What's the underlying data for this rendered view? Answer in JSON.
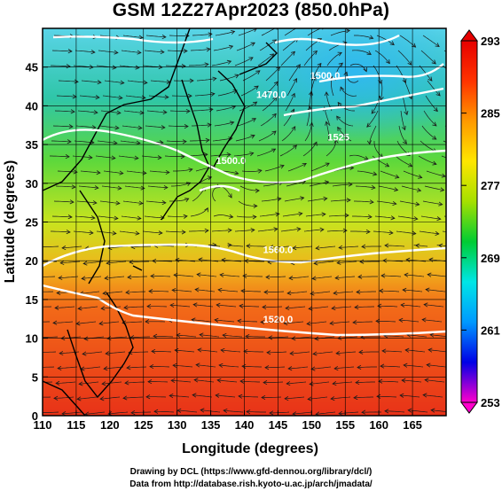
{
  "title": "GSM 12Z27Apr2023 (850.0hPa)",
  "credits": [
    "Drawing by DCL (https://www.gfd-dennou.org/library/dcl/)",
    "Data from http://database.rish.kyoto-u.ac.jp/arch/jmadata/"
  ],
  "chart_data": {
    "type": "map",
    "title": "GSM 12Z27Apr2023 (850.0hPa)",
    "xlabel": "Longitude (degrees)",
    "ylabel": "Latitude  (degrees)",
    "xlim": [
      110,
      170
    ],
    "ylim": [
      0,
      50
    ],
    "xticks": [
      110,
      115,
      120,
      125,
      130,
      135,
      140,
      145,
      150,
      155,
      160,
      165
    ],
    "yticks": [
      0,
      5,
      10,
      15,
      20,
      25,
      30,
      35,
      40,
      45
    ],
    "grid": true,
    "colorbar": {
      "min": 253,
      "max": 293,
      "ticks": [
        293,
        285,
        277,
        269,
        261,
        253
      ],
      "stops": [
        "#ff00cc",
        "#0000e6",
        "#0099ff",
        "#00e6e6",
        "#00cc33",
        "#a6e000",
        "#ffe600",
        "#ff9900",
        "#ff3300",
        "#e60000"
      ]
    },
    "contour_labels": [
      {
        "text": "1500.0",
        "lon": 152,
        "lat": 43.5
      },
      {
        "text": "1470.0",
        "lon": 144,
        "lat": 41
      },
      {
        "text": "1525",
        "lon": 154,
        "lat": 35.5
      },
      {
        "text": "1500.0",
        "lon": 138,
        "lat": 32.5
      },
      {
        "text": "1560.0",
        "lon": 145,
        "lat": 21
      },
      {
        "text": "1520.0",
        "lon": 145,
        "lat": 12
      }
    ]
  }
}
